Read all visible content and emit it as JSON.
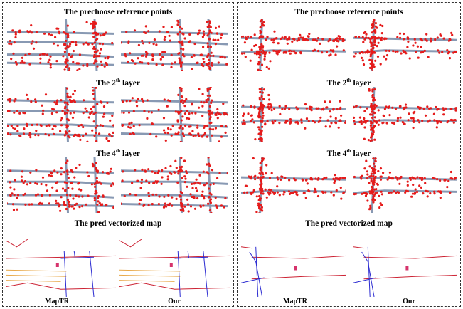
{
  "colors": {
    "points": "#e51b1b",
    "road": "#8899b3",
    "map_red": "#cc2233",
    "map_blue": "#2b2bd1",
    "map_orange": "#e8a94a",
    "map_marker": "#d6336c"
  },
  "left": {
    "titles": {
      "prechoose": "The prechoose reference points",
      "layer2_prefix": "The 2",
      "layer2_sup": "th",
      "layer2_suffix": " layer",
      "layer4_prefix": "The 4",
      "layer4_sup": "th",
      "layer4_suffix": " layer",
      "pred": "The pred vectorized map"
    },
    "labels": {
      "a": "MapTR",
      "b": "Our"
    }
  },
  "right": {
    "titles": {
      "prechoose": "The prechoose reference points",
      "layer2_prefix": "The 2",
      "layer2_sup": "th",
      "layer2_suffix": " layer",
      "layer4_prefix": "The 4",
      "layer4_sup": "th",
      "layer4_suffix": " layer",
      "pred": "The pred vectorized map"
    },
    "labels": {
      "a": "MapTR",
      "b": "Our"
    }
  }
}
